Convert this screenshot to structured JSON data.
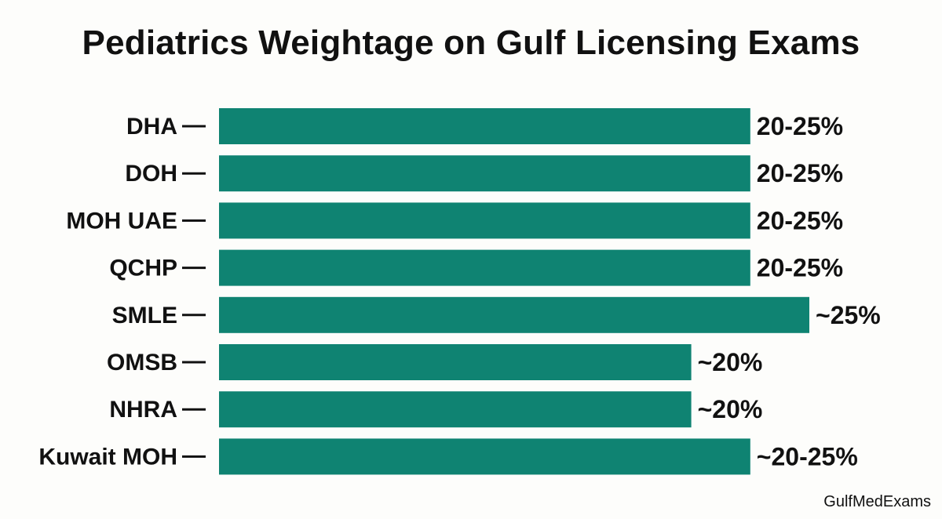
{
  "chart_data": {
    "type": "bar",
    "orientation": "horizontal",
    "title": "Pediatrics Weightage on Gulf Licensing Exams",
    "xlabel": "",
    "ylabel": "",
    "categories": [
      "DHA",
      "DOH",
      "MOH UAE",
      "QCHP",
      "SMLE",
      "OMSB",
      "NHRA",
      "Kuwait MOH"
    ],
    "values": [
      22.5,
      22.5,
      22.5,
      22.5,
      25,
      20,
      20,
      22.5
    ],
    "value_labels": [
      "20-25%",
      "20-25%",
      "20-25%",
      "20-25%",
      "~25%",
      "~20%",
      "~20%",
      "~20-25%"
    ],
    "xlim": [
      0,
      25
    ],
    "grid": false,
    "bar_color": "#0f8372"
  },
  "watermark": "GulfMedExams"
}
